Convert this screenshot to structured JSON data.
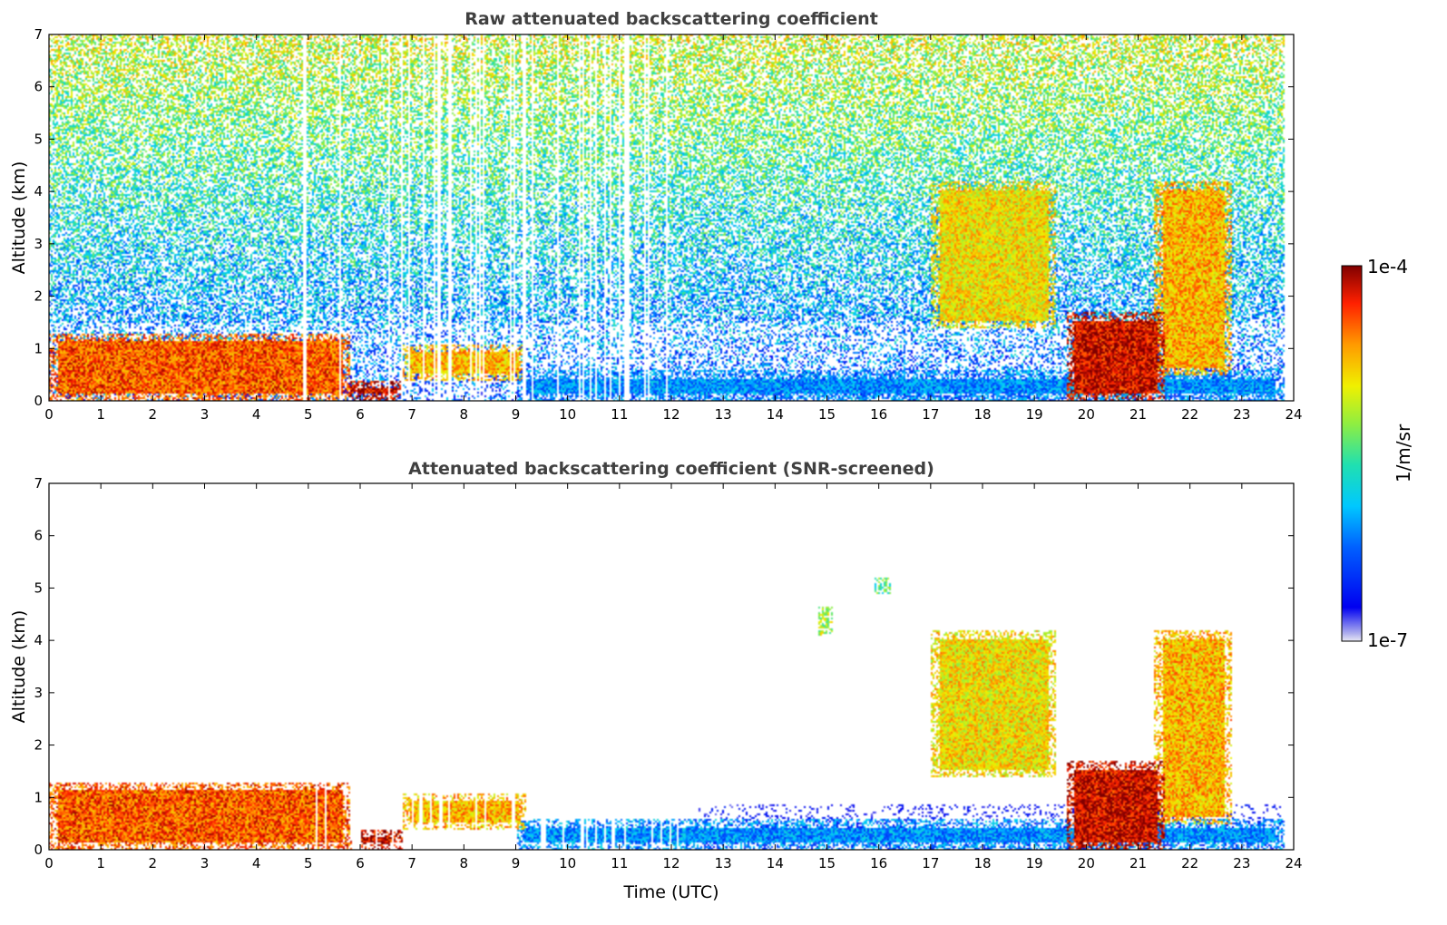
{
  "chart_data": [
    {
      "type": "heatmap",
      "title": "Raw attenuated backscattering coefficient",
      "xlabel": "",
      "ylabel": "Altitude (km)",
      "xlim": [
        0,
        24
      ],
      "ylim": [
        0,
        7
      ],
      "xticks": [
        "0",
        "1",
        "2",
        "3",
        "4",
        "5",
        "6",
        "7",
        "8",
        "9",
        "10",
        "11",
        "12",
        "13",
        "14",
        "15",
        "16",
        "17",
        "18",
        "19",
        "20",
        "21",
        "22",
        "23",
        "24"
      ],
      "yticks": [
        "0",
        "1",
        "2",
        "3",
        "4",
        "5",
        "6",
        "7"
      ],
      "data_end_hour": 23.8,
      "noise": "dense speckle noise throughout; green/yellow above 3 km, blue below",
      "features": [
        {
          "name": "boundary layer aerosol",
          "x": [
            0,
            5.8
          ],
          "y": [
            0,
            1.3
          ],
          "level": 0.85
        },
        {
          "name": "rain/low cloud",
          "x": [
            5.8,
            6.8
          ],
          "y": [
            0,
            0.4
          ],
          "level": 0.95
        },
        {
          "name": "aerosol layer",
          "x": [
            6.8,
            9.2
          ],
          "y": [
            0.4,
            1.1
          ],
          "level": 0.75
        },
        {
          "name": "surface layer",
          "x": [
            9,
            23.8
          ],
          "y": [
            0,
            0.6
          ],
          "level": 0.3
        },
        {
          "name": "cloud",
          "x": [
            17,
            19.4
          ],
          "y": [
            1.4,
            4.2
          ],
          "level": 0.7
        },
        {
          "name": "precipitation",
          "x": [
            19.6,
            21.5
          ],
          "y": [
            0,
            1.7
          ],
          "level": 0.95
        },
        {
          "name": "cloud",
          "x": [
            21.3,
            22.8
          ],
          "y": [
            0.5,
            4.2
          ],
          "level": 0.75
        }
      ]
    },
    {
      "type": "heatmap",
      "title": "Attenuated backscattering coefficient (SNR-screened)",
      "xlabel": "Time (UTC)",
      "ylabel": "Altitude (km)",
      "xlim": [
        0,
        24
      ],
      "ylim": [
        0,
        7
      ],
      "xticks": [
        "0",
        "1",
        "2",
        "3",
        "4",
        "5",
        "6",
        "7",
        "8",
        "9",
        "10",
        "11",
        "12",
        "13",
        "14",
        "15",
        "16",
        "17",
        "18",
        "19",
        "20",
        "21",
        "22",
        "23",
        "24"
      ],
      "yticks": [
        "0",
        "1",
        "2",
        "3",
        "4",
        "5",
        "6",
        "7"
      ],
      "data_end_hour": 23.8,
      "noise": "screened: only significant signal kept",
      "features": [
        {
          "name": "boundary layer aerosol",
          "x": [
            0,
            5.8
          ],
          "y": [
            0,
            1.3
          ],
          "level": 0.85
        },
        {
          "name": "rain/low cloud",
          "x": [
            5.8,
            6.8
          ],
          "y": [
            0,
            0.4
          ],
          "level": 0.95
        },
        {
          "name": "aerosol layer",
          "x": [
            6.8,
            9.2
          ],
          "y": [
            0.4,
            1.1
          ],
          "level": 0.75
        },
        {
          "name": "surface layer",
          "x": [
            9,
            23.8
          ],
          "y": [
            0,
            0.6
          ],
          "level": 0.3
        },
        {
          "name": "cloud",
          "x": [
            17,
            19.4
          ],
          "y": [
            1.4,
            4.2
          ],
          "level": 0.7
        },
        {
          "name": "precipitation",
          "x": [
            19.6,
            21.5
          ],
          "y": [
            0,
            1.7
          ],
          "level": 0.95
        },
        {
          "name": "cloud",
          "x": [
            21.3,
            22.8
          ],
          "y": [
            0.5,
            4.2
          ],
          "level": 0.75
        },
        {
          "name": "elevated aerosol patch",
          "x": [
            14.8,
            15.1
          ],
          "y": [
            4.1,
            4.7
          ],
          "level": 0.6
        },
        {
          "name": "elevated aerosol patch",
          "x": [
            15.9,
            16.2
          ],
          "y": [
            4.9,
            5.2
          ],
          "level": 0.5
        }
      ]
    }
  ],
  "colorbar": {
    "label": "1/m/sr",
    "max_label": "1e-4",
    "min_label": "1e-7",
    "colormap": "jet",
    "scale": "log"
  }
}
